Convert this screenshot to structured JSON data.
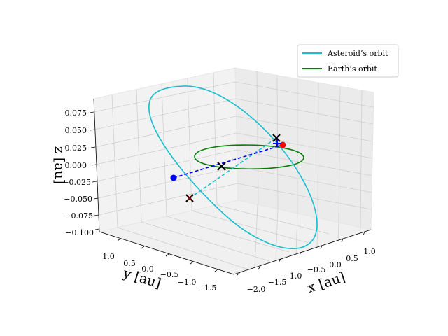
{
  "chart_data": {
    "type": "line3d",
    "title": "",
    "axes": {
      "x": {
        "label": "x [au]",
        "ticks": [
          "−2.0",
          "−1.5",
          "−1.0",
          "−0.5",
          "0.0",
          "0.5",
          "1.0"
        ]
      },
      "y": {
        "label": "y [au]",
        "ticks": [
          "1.0",
          "0.5",
          "0.0",
          "−0.5",
          "−1.0",
          "−1.5"
        ]
      },
      "z": {
        "label": "z [au]",
        "ticks": [
          "0.075",
          "0.050",
          "0.025",
          "0.000",
          "−0.025",
          "−0.050",
          "−0.075",
          "−0.100"
        ]
      }
    },
    "grid": true,
    "legend_position": "top-right",
    "series": [
      {
        "name": "Asteroid’s orbit",
        "color": "#17becf",
        "style": "solid"
      },
      {
        "name": "Earth’s orbit",
        "color": "#008000",
        "style": "solid"
      }
    ],
    "markers": [
      {
        "kind": "dot",
        "color": "#0000ff"
      },
      {
        "kind": "dot",
        "color": "#ff0000"
      },
      {
        "kind": "x",
        "color": "#000000"
      },
      {
        "kind": "x",
        "color": "#000000"
      },
      {
        "kind": "x",
        "color": "#8b0000"
      },
      {
        "kind": "plus",
        "color": "#0000ff"
      }
    ]
  }
}
